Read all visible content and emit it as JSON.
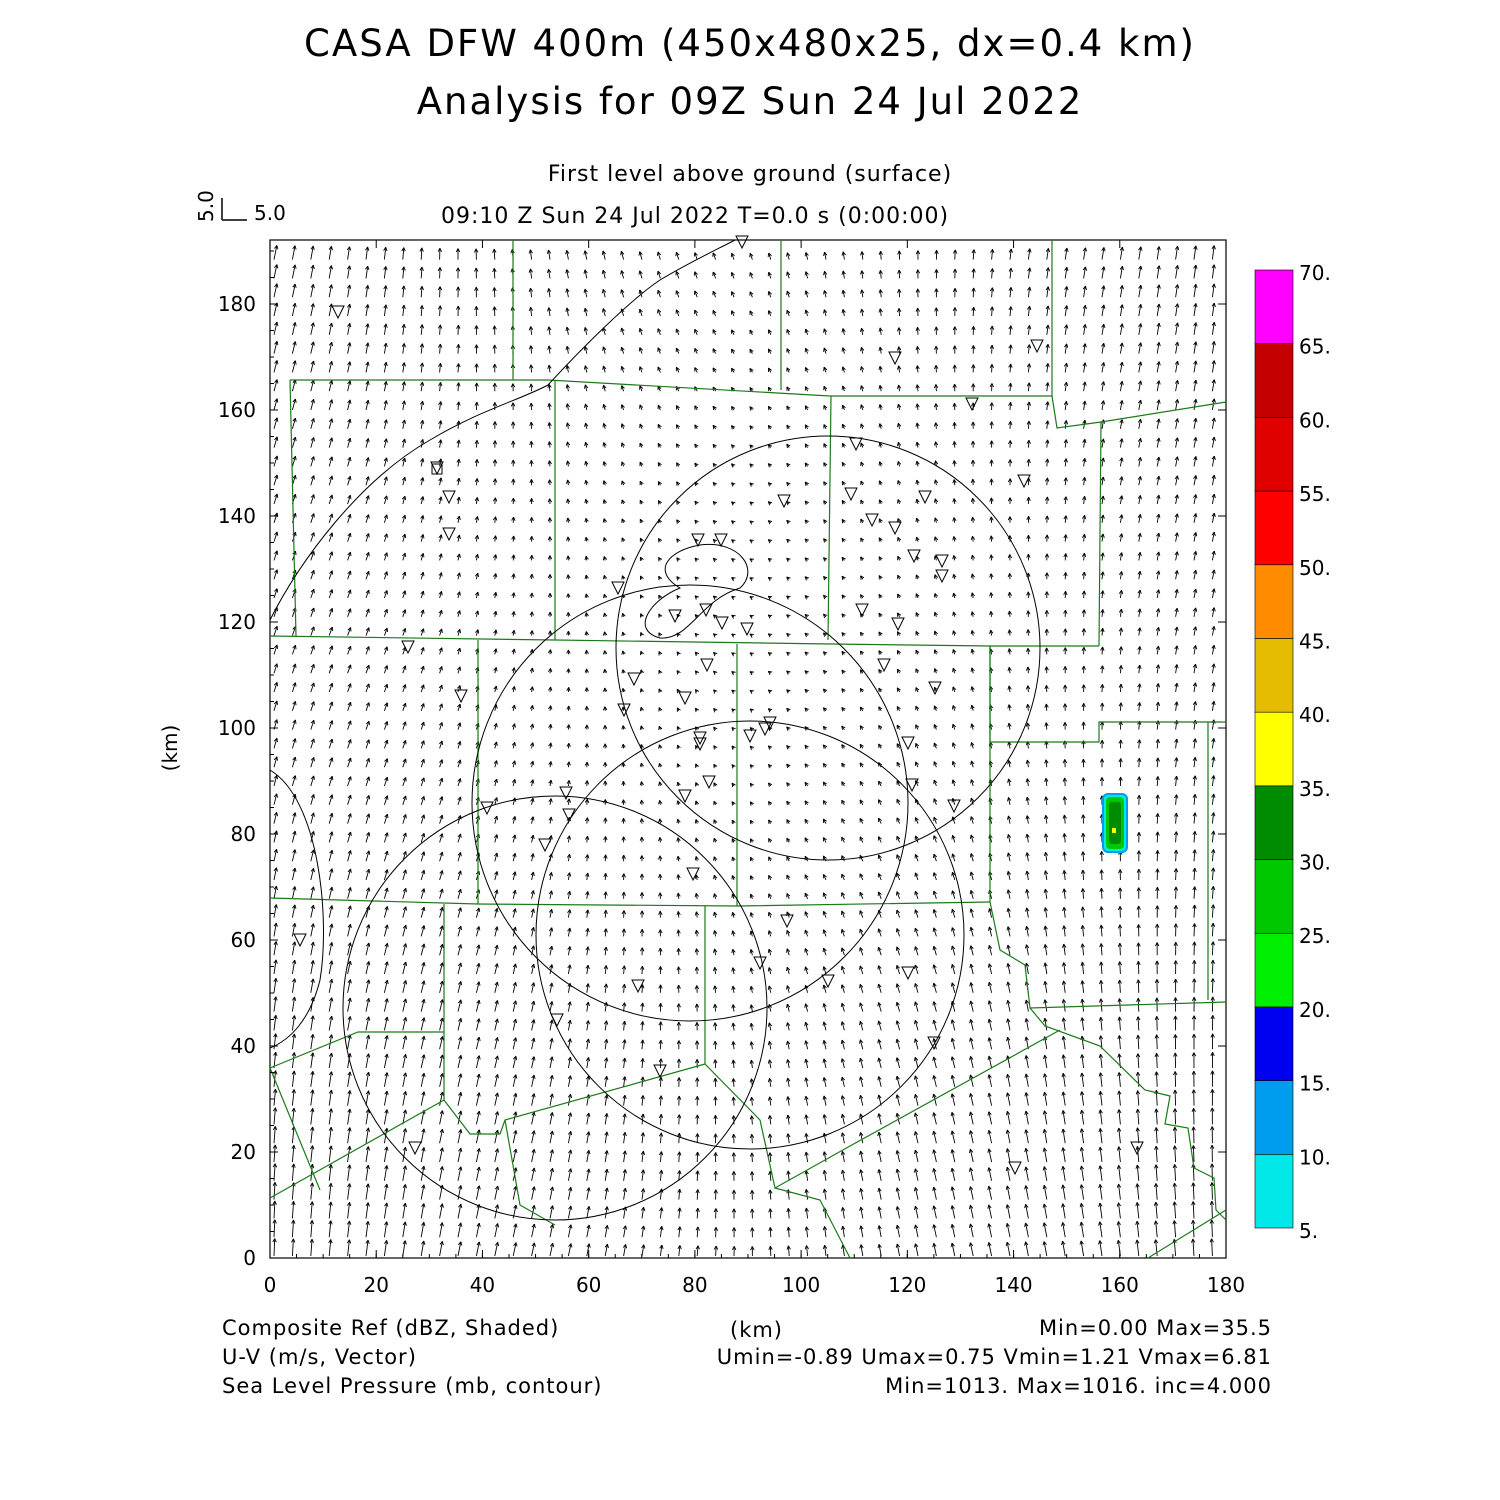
{
  "header": {
    "title_line1": "CASA DFW 400m (450x480x25, dx=0.4 km)",
    "title_line2": "Analysis for 09Z Sun 24 Jul 2022",
    "level": "First level above ground (surface)",
    "valid_time": "09:10 Z Sun 24 Jul 2022    T=0.0 s (0:00:00)",
    "vector_scale_x": "5.0",
    "vector_scale_y": "5.0"
  },
  "axes": {
    "x_unit": "(km)",
    "y_unit": "(km)",
    "x_ticks": [
      "0",
      "20",
      "40",
      "60",
      "80",
      "100",
      "120",
      "140",
      "160",
      "180"
    ],
    "y_ticks": [
      "0",
      "20",
      "40",
      "60",
      "80",
      "100",
      "120",
      "140",
      "160",
      "180"
    ]
  },
  "colorbar": {
    "labels": [
      "5.",
      "10.",
      "15.",
      "20.",
      "25.",
      "30.",
      "35.",
      "40.",
      "45.",
      "50.",
      "55.",
      "60.",
      "65.",
      "70."
    ],
    "colors": [
      "#00e8e8",
      "#009cf0",
      "#0000f0",
      "#00ee00",
      "#00c800",
      "#008c00",
      "#ffff00",
      "#e6bc00",
      "#ff8c00",
      "#ff0000",
      "#e00000",
      "#c40000",
      "#ff00ff"
    ]
  },
  "footer": {
    "left": [
      "Composite Ref (dBZ, Shaded)",
      "U-V (m/s, Vector)",
      "Sea Level Pressure (mb, contour)"
    ],
    "center": "(km)",
    "right": [
      "Min=0.00 Max=35.5",
      "Umin=-0.89 Umax=0.75 Vmin=1.21 Vmax=6.81",
      "Min=1013. Max=1016. inc=4.000"
    ]
  },
  "map_layers": {
    "vector_color": "#000000",
    "boundary_color": "#1a7a1a",
    "contour_color": "#000000",
    "radar_symbol": "triangle-down"
  }
}
